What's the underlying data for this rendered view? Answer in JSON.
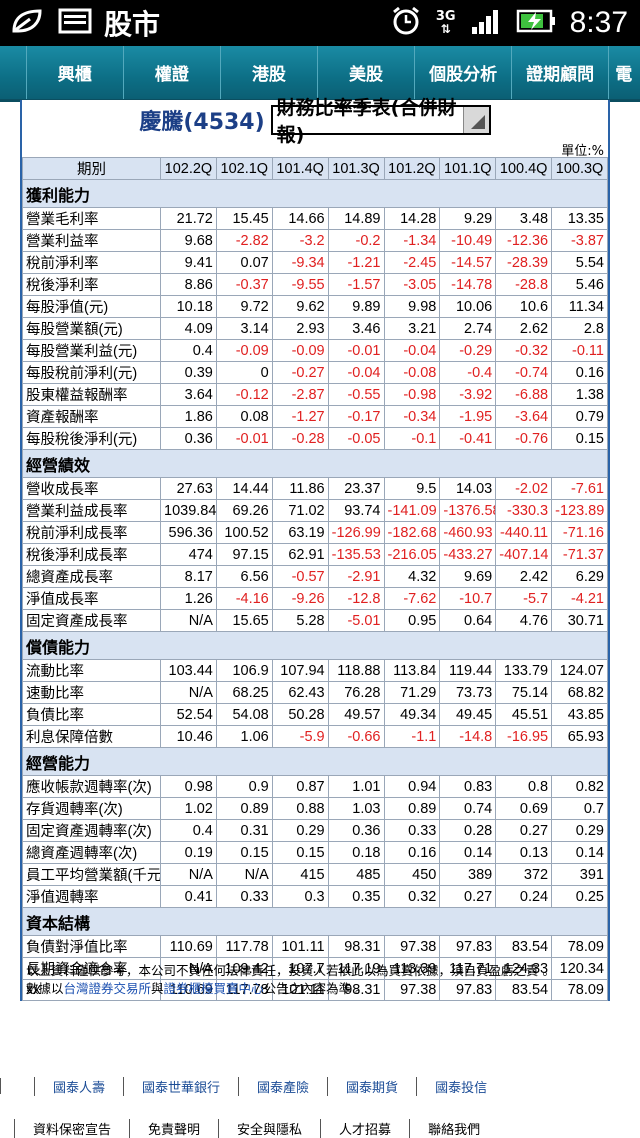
{
  "status_bar": {
    "app": "股市",
    "network": "3G",
    "time": "8:37"
  },
  "nav": {
    "items": [
      "興櫃",
      "權證",
      "港股",
      "美股",
      "個股分析",
      "證期顧問",
      "電"
    ]
  },
  "header": {
    "stock": "慶騰(4534)",
    "report_select": "財務比率季表(合併財報)",
    "unit": "單位:%"
  },
  "table": {
    "columns": [
      "期別",
      "102.2Q",
      "102.1Q",
      "101.4Q",
      "101.3Q",
      "101.2Q",
      "101.1Q",
      "100.4Q",
      "100.3Q"
    ],
    "sections": [
      {
        "title": "獲利能力",
        "rows": [
          {
            "label": "營業毛利率",
            "values": [
              "21.72",
              "15.45",
              "14.66",
              "14.89",
              "14.28",
              "9.29",
              "3.48",
              "13.35"
            ]
          },
          {
            "label": "營業利益率",
            "values": [
              "9.68",
              "-2.82",
              "-3.2",
              "-0.2",
              "-1.34",
              "-10.49",
              "-12.36",
              "-3.87"
            ]
          },
          {
            "label": "稅前淨利率",
            "values": [
              "9.41",
              "0.07",
              "-9.34",
              "-1.21",
              "-2.45",
              "-14.57",
              "-28.39",
              "5.54"
            ]
          },
          {
            "label": "稅後淨利率",
            "values": [
              "8.86",
              "-0.37",
              "-9.55",
              "-1.57",
              "-3.05",
              "-14.78",
              "-28.8",
              "5.46"
            ]
          },
          {
            "label": "每股淨值(元)",
            "values": [
              "10.18",
              "9.72",
              "9.62",
              "9.89",
              "9.98",
              "10.06",
              "10.6",
              "11.34"
            ]
          },
          {
            "label": "每股營業額(元)",
            "values": [
              "4.09",
              "3.14",
              "2.93",
              "3.46",
              "3.21",
              "2.74",
              "2.62",
              "2.8"
            ]
          },
          {
            "label": "每股營業利益(元)",
            "values": [
              "0.4",
              "-0.09",
              "-0.09",
              "-0.01",
              "-0.04",
              "-0.29",
              "-0.32",
              "-0.11"
            ]
          },
          {
            "label": "每股稅前淨利(元)",
            "values": [
              "0.39",
              "0",
              "-0.27",
              "-0.04",
              "-0.08",
              "-0.4",
              "-0.74",
              "0.16"
            ]
          },
          {
            "label": "股東權益報酬率",
            "values": [
              "3.64",
              "-0.12",
              "-2.87",
              "-0.55",
              "-0.98",
              "-3.92",
              "-6.88",
              "1.38"
            ]
          },
          {
            "label": "資產報酬率",
            "values": [
              "1.86",
              "0.08",
              "-1.27",
              "-0.17",
              "-0.34",
              "-1.95",
              "-3.64",
              "0.79"
            ]
          },
          {
            "label": "每股稅後淨利(元)",
            "values": [
              "0.36",
              "-0.01",
              "-0.28",
              "-0.05",
              "-0.1",
              "-0.41",
              "-0.76",
              "0.15"
            ]
          }
        ]
      },
      {
        "title": "經營績效",
        "rows": [
          {
            "label": "營收成長率",
            "values": [
              "27.63",
              "14.44",
              "11.86",
              "23.37",
              "9.5",
              "14.03",
              "-2.02",
              "-7.61"
            ]
          },
          {
            "label": "營業利益成長率",
            "values": [
              "1039.84",
              "69.26",
              "71.02",
              "93.74",
              "-141.09",
              "-1376.58",
              "-330.3",
              "-123.89"
            ]
          },
          {
            "label": "稅前淨利成長率",
            "values": [
              "596.36",
              "100.52",
              "63.19",
              "-126.99",
              "-182.68",
              "-460.93",
              "-440.11",
              "-71.16"
            ]
          },
          {
            "label": "稅後淨利成長率",
            "values": [
              "474",
              "97.15",
              "62.91",
              "-135.53",
              "-216.05",
              "-433.27",
              "-407.14",
              "-71.37"
            ]
          },
          {
            "label": "總資產成長率",
            "values": [
              "8.17",
              "6.56",
              "-0.57",
              "-2.91",
              "4.32",
              "9.69",
              "2.42",
              "6.29"
            ]
          },
          {
            "label": "淨值成長率",
            "values": [
              "1.26",
              "-4.16",
              "-9.26",
              "-12.8",
              "-7.62",
              "-10.7",
              "-5.7",
              "-4.21"
            ]
          },
          {
            "label": "固定資產成長率",
            "values": [
              "N/A",
              "15.65",
              "5.28",
              "-5.01",
              "0.95",
              "0.64",
              "4.76",
              "30.71"
            ]
          }
        ]
      },
      {
        "title": "償債能力",
        "rows": [
          {
            "label": "流動比率",
            "values": [
              "103.44",
              "106.9",
              "107.94",
              "118.88",
              "113.84",
              "119.44",
              "133.79",
              "124.07"
            ]
          },
          {
            "label": "速動比率",
            "values": [
              "N/A",
              "68.25",
              "62.43",
              "76.28",
              "71.29",
              "73.73",
              "75.14",
              "68.82"
            ]
          },
          {
            "label": "負債比率",
            "values": [
              "52.54",
              "54.08",
              "50.28",
              "49.57",
              "49.34",
              "49.45",
              "45.51",
              "43.85"
            ]
          },
          {
            "label": "利息保障倍數",
            "values": [
              "10.46",
              "1.06",
              "-5.9",
              "-0.66",
              "-1.1",
              "-14.8",
              "-16.95",
              "65.93"
            ]
          }
        ]
      },
      {
        "title": "經營能力",
        "rows": [
          {
            "label": "應收帳款週轉率(次)",
            "values": [
              "0.98",
              "0.9",
              "0.87",
              "1.01",
              "0.94",
              "0.83",
              "0.8",
              "0.82"
            ]
          },
          {
            "label": "存貨週轉率(次)",
            "values": [
              "1.02",
              "0.89",
              "0.88",
              "1.03",
              "0.89",
              "0.74",
              "0.69",
              "0.7"
            ]
          },
          {
            "label": "固定資產週轉率(次)",
            "values": [
              "0.4",
              "0.31",
              "0.29",
              "0.36",
              "0.33",
              "0.28",
              "0.27",
              "0.29"
            ]
          },
          {
            "label": "總資產週轉率(次)",
            "values": [
              "0.19",
              "0.15",
              "0.15",
              "0.18",
              "0.16",
              "0.14",
              "0.13",
              "0.14"
            ]
          },
          {
            "label": "員工平均營業額(千元)",
            "values": [
              "N/A",
              "N/A",
              "415",
              "485",
              "450",
              "389",
              "372",
              "391"
            ]
          },
          {
            "label": "淨值週轉率",
            "values": [
              "0.41",
              "0.33",
              "0.3",
              "0.35",
              "0.32",
              "0.27",
              "0.24",
              "0.25"
            ]
          }
        ]
      },
      {
        "title": "資本結構",
        "rows": [
          {
            "label": "負債對淨值比率",
            "values": [
              "110.69",
              "117.78",
              "101.11",
              "98.31",
              "97.38",
              "97.83",
              "83.54",
              "78.09"
            ]
          },
          {
            "label": "長期資金適合率",
            "values": [
              "N/A",
              "109.42",
              "107.7",
              "117.19",
              "113.39",
              "117.71",
              "124.33",
              "120.34"
            ]
          },
          {
            "label": "xx",
            "values": [
              "110.69",
              "117.78",
              "101.11",
              "98.31",
              "97.38",
              "97.83",
              "83.54",
              "78.09"
            ]
          }
        ]
      }
    ]
  },
  "disclaimer": {
    "line1": "以上資料僅供參考，本公司不負任何法律責任，投資人若依此以為買賣依據，須自負盈虧之責 。",
    "line2_prefix": "數據以",
    "link1": "台灣證券交易所",
    "line2_mid": "與",
    "link2": "證券櫃檯買賣中心",
    "line2_suffix": "公告之內容為準 。"
  },
  "footer": {
    "links1": [
      "國泰人壽",
      "國泰世華銀行",
      "國泰產險",
      "國泰期貨",
      "國泰投信"
    ],
    "links2": [
      "資料保密宣告",
      "免責聲明",
      "安全與隱私",
      "人才招募",
      "聯絡我們"
    ]
  },
  "colors": {
    "nav_bg": "#0d6f86",
    "header_bg": "#d8e3f2",
    "negative": "#e02020",
    "title": "#1c3f86",
    "border": "#2a63a8"
  }
}
